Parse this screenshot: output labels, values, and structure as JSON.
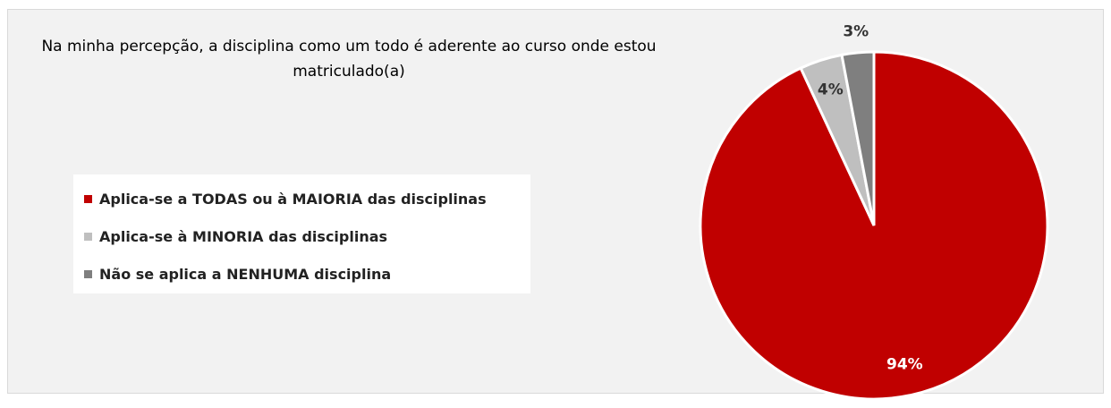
{
  "chart_data": {
    "type": "pie",
    "title": "Na minha percepção, a disciplina como um todo é aderente ao curso onde estou matriculado(a)",
    "categories": [
      "Aplica-se a TODAS ou à MAIORIA das disciplinas",
      "Aplica-se à MINORIA das disciplinas",
      "Não se aplica a NENHUMA disciplina"
    ],
    "values": [
      94,
      4,
      3
    ],
    "value_labels": [
      "94%",
      "4%",
      "3%"
    ],
    "colors": [
      "#c00000",
      "#bfbfbf",
      "#7f7f7f"
    ],
    "legend": "left"
  }
}
